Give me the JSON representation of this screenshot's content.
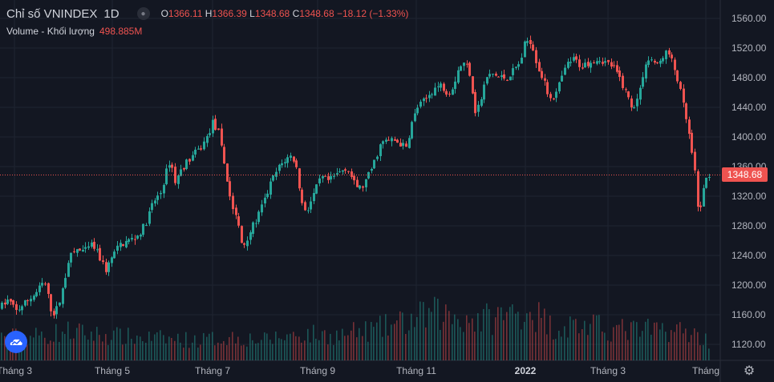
{
  "header": {
    "symbol": "Chỉ số VNINDEX",
    "interval": "1D",
    "open_key": "O",
    "open": "1366.11",
    "high_key": "H",
    "high": "1366.39",
    "low_key": "L",
    "low": "1348.68",
    "close_key": "C",
    "close": "1348.68",
    "change": "−18.12 (−1.33%)",
    "eye_icon": "eye-icon"
  },
  "volume": {
    "label": "Volume - Khối lượng",
    "value": "498.885M"
  },
  "last_price_label": "1348.68",
  "logo_icon": "tradingview-logo-icon",
  "settings_icon": "gear-icon",
  "colors": {
    "up": "#26a69a",
    "down": "#ef5350",
    "bg": "#131722",
    "grid": "#1f2431"
  },
  "chart_data": {
    "type": "candlestick",
    "y_ticks": [
      "1560.00",
      "1520.00",
      "1480.00",
      "1440.00",
      "1400.00",
      "1360.00",
      "1320.00",
      "1280.00",
      "1240.00",
      "1200.00",
      "1160.00",
      "1120.00"
    ],
    "x_ticks": [
      "Tháng 3",
      "Tháng 5",
      "Tháng 7",
      "Tháng 9",
      "Tháng 11",
      "2022",
      "Tháng 3",
      "Tháng"
    ],
    "ylim": [
      1095,
      1580
    ],
    "last_price": 1348.68,
    "price_path": [
      [
        0,
        1170
      ],
      [
        10,
        1180
      ],
      [
        20,
        1165
      ],
      [
        30,
        1175
      ],
      [
        45,
        1190
      ],
      [
        55,
        1205
      ],
      [
        65,
        1160
      ],
      [
        72,
        1170
      ],
      [
        80,
        1205
      ],
      [
        85,
        1235
      ],
      [
        95,
        1248
      ],
      [
        105,
        1245
      ],
      [
        115,
        1255
      ],
      [
        125,
        1235
      ],
      [
        132,
        1220
      ],
      [
        140,
        1240
      ],
      [
        150,
        1255
      ],
      [
        160,
        1260
      ],
      [
        170,
        1265
      ],
      [
        180,
        1280
      ],
      [
        190,
        1310
      ],
      [
        200,
        1325
      ],
      [
        205,
        1345
      ],
      [
        212,
        1370
      ],
      [
        218,
        1340
      ],
      [
        228,
        1360
      ],
      [
        240,
        1375
      ],
      [
        250,
        1385
      ],
      [
        258,
        1400
      ],
      [
        265,
        1420
      ],
      [
        272,
        1405
      ],
      [
        280,
        1360
      ],
      [
        288,
        1310
      ],
      [
        296,
        1285
      ],
      [
        302,
        1250
      ],
      [
        310,
        1270
      ],
      [
        318,
        1285
      ],
      [
        328,
        1310
      ],
      [
        338,
        1340
      ],
      [
        348,
        1360
      ],
      [
        356,
        1370
      ],
      [
        364,
        1375
      ],
      [
        370,
        1355
      ],
      [
        376,
        1310
      ],
      [
        382,
        1300
      ],
      [
        390,
        1320
      ],
      [
        400,
        1345
      ],
      [
        410,
        1340
      ],
      [
        420,
        1350
      ],
      [
        432,
        1360
      ],
      [
        442,
        1335
      ],
      [
        450,
        1330
      ],
      [
        458,
        1345
      ],
      [
        466,
        1365
      ],
      [
        474,
        1390
      ],
      [
        482,
        1395
      ],
      [
        492,
        1395
      ],
      [
        500,
        1390
      ],
      [
        506,
        1385
      ],
      [
        512,
        1415
      ],
      [
        520,
        1440
      ],
      [
        530,
        1450
      ],
      [
        540,
        1465
      ],
      [
        550,
        1470
      ],
      [
        558,
        1460
      ],
      [
        565,
        1470
      ],
      [
        572,
        1495
      ],
      [
        580,
        1500
      ],
      [
        586,
        1485
      ],
      [
        592,
        1435
      ],
      [
        598,
        1445
      ],
      [
        606,
        1480
      ],
      [
        614,
        1485
      ],
      [
        622,
        1480
      ],
      [
        632,
        1480
      ],
      [
        640,
        1490
      ],
      [
        648,
        1500
      ],
      [
        655,
        1530
      ],
      [
        662,
        1530
      ],
      [
        670,
        1495
      ],
      [
        676,
        1480
      ],
      [
        684,
        1455
      ],
      [
        692,
        1455
      ],
      [
        700,
        1480
      ],
      [
        708,
        1500
      ],
      [
        716,
        1505
      ],
      [
        724,
        1495
      ],
      [
        732,
        1500
      ],
      [
        740,
        1505
      ],
      [
        748,
        1505
      ],
      [
        756,
        1500
      ],
      [
        764,
        1495
      ],
      [
        772,
        1480
      ],
      [
        780,
        1460
      ],
      [
        788,
        1440
      ],
      [
        796,
        1455
      ],
      [
        804,
        1500
      ],
      [
        812,
        1505
      ],
      [
        820,
        1495
      ],
      [
        826,
        1510
      ],
      [
        832,
        1515
      ],
      [
        838,
        1500
      ],
      [
        844,
        1480
      ],
      [
        850,
        1450
      ],
      [
        856,
        1420
      ],
      [
        862,
        1380
      ],
      [
        866,
        1350
      ],
      [
        870,
        1300
      ],
      [
        874,
        1310
      ],
      [
        878,
        1335
      ],
      [
        882,
        1350
      ],
      [
        886,
        1348.68
      ]
    ],
    "volume_profile": [
      [
        0,
        0.3
      ],
      [
        60,
        0.32
      ],
      [
        80,
        0.38
      ],
      [
        110,
        0.34
      ],
      [
        160,
        0.3
      ],
      [
        200,
        0.28
      ],
      [
        250,
        0.26
      ],
      [
        290,
        0.3
      ],
      [
        330,
        0.26
      ],
      [
        370,
        0.34
      ],
      [
        420,
        0.32
      ],
      [
        470,
        0.4
      ],
      [
        510,
        0.5
      ],
      [
        540,
        0.6
      ],
      [
        570,
        0.56
      ],
      [
        600,
        0.52
      ],
      [
        630,
        0.58
      ],
      [
        660,
        0.66
      ],
      [
        690,
        0.42
      ],
      [
        720,
        0.46
      ],
      [
        760,
        0.4
      ],
      [
        800,
        0.38
      ],
      [
        830,
        0.4
      ],
      [
        860,
        0.36
      ],
      [
        886,
        0.24
      ]
    ]
  }
}
